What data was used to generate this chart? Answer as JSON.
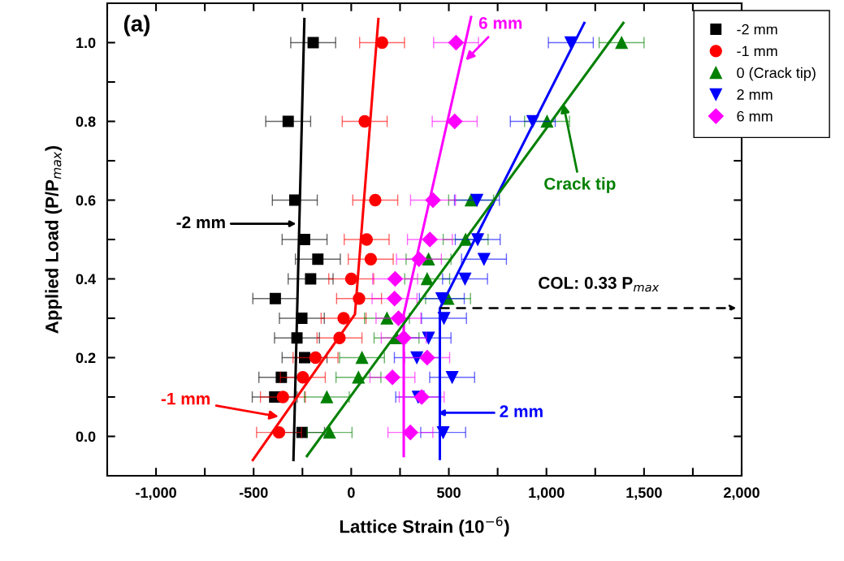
{
  "chart_data": {
    "type": "scatter",
    "xlabel": "Lattice Strain (10$^{−6}$)",
    "ylabel": "Applied Load (P/P$_{max}$)",
    "xlim": [
      -1250,
      2000
    ],
    "ylim": [
      -0.1,
      1.1
    ],
    "xticks": [
      {
        "value": -1250,
        "label": null
      },
      {
        "value": -1000,
        "label": "-1,000"
      },
      {
        "value": -750,
        "label": null
      },
      {
        "value": -500,
        "label": "-500"
      },
      {
        "value": -250,
        "label": null
      },
      0,
      {
        "value": 250,
        "label": null
      },
      500,
      {
        "value": 750,
        "label": null
      },
      {
        "value": 1000,
        "label": "1,000"
      },
      {
        "value": 1250,
        "label": null
      },
      {
        "value": 1500,
        "label": "1,500"
      },
      {
        "value": 1750,
        "label": null
      },
      {
        "value": 2000,
        "label": "2,000"
      }
    ],
    "yticks": [
      {
        "value": 0.0,
        "label": "0.0"
      },
      {
        "value": 0.1,
        "label": null
      },
      {
        "value": 0.2,
        "label": "0.2"
      },
      {
        "value": 0.3,
        "label": null
      },
      {
        "value": 0.4,
        "label": "0.4"
      },
      {
        "value": 0.5,
        "label": null
      },
      {
        "value": 0.6,
        "label": "0.6"
      },
      {
        "value": 0.7,
        "label": null
      },
      {
        "value": 0.8,
        "label": "0.8"
      },
      {
        "value": 0.9,
        "label": null
      },
      {
        "value": 1.0,
        "label": "1.0"
      }
    ],
    "grid": false,
    "legend": "top right",
    "series": [
      {
        "name": "-2 mm",
        "marker": "square",
        "color": "#000000",
        "x": [
          -195,
          -323,
          -289,
          -239,
          -171,
          -208,
          -389,
          -253,
          -278,
          -239,
          -358,
          -392,
          -252
        ],
        "values": [
          1.0,
          0.8,
          0.6,
          0.5,
          0.45,
          0.4,
          0.35,
          0.3,
          0.25,
          0.2,
          0.15,
          0.1,
          0.01
        ],
        "xerrors": [
          115,
          115,
          115,
          115,
          115,
          115,
          115,
          115,
          115,
          115,
          115,
          115,
          115
        ]
      },
      {
        "name": "-1 mm",
        "marker": "circle",
        "color": "#ff0000",
        "x": [
          158,
          69,
          123,
          79,
          100,
          0,
          40,
          -39,
          -60,
          -183,
          -248,
          -350,
          -370
        ],
        "values": [
          1.0,
          0.8,
          0.6,
          0.5,
          0.45,
          0.4,
          0.35,
          0.3,
          0.25,
          0.2,
          0.15,
          0.1,
          0.01
        ],
        "xerrors": [
          115,
          115,
          115,
          115,
          115,
          115,
          115,
          115,
          115,
          115,
          115,
          115,
          115
        ]
      },
      {
        "name": "0 (Crack tip)",
        "marker": "triangle",
        "color": "#008000",
        "x": [
          1385,
          1003,
          614,
          586,
          396,
          389,
          496,
          183,
          232,
          55,
          37,
          -125,
          -111
        ],
        "values": [
          1.0,
          0.8,
          0.6,
          0.5,
          0.45,
          0.4,
          0.35,
          0.3,
          0.25,
          0.2,
          0.15,
          0.1,
          0.01
        ],
        "xerrors": [
          115,
          115,
          115,
          115,
          115,
          115,
          115,
          115,
          115,
          115,
          115,
          115,
          115
        ]
      },
      {
        "name": "2 mm",
        "marker": "triangle_down",
        "color": "#0000ff",
        "x": [
          1125,
          930,
          644,
          648,
          680,
          583,
          464,
          475,
          396,
          336,
          517,
          343,
          471
        ],
        "values": [
          1.0,
          0.8,
          0.6,
          0.5,
          0.45,
          0.4,
          0.35,
          0.3,
          0.25,
          0.2,
          0.15,
          0.1,
          0.01
        ],
        "xerrors": [
          115,
          115,
          115,
          115,
          115,
          115,
          115,
          115,
          115,
          115,
          115,
          115,
          115
        ]
      },
      {
        "name": "6 mm",
        "marker": "diamond",
        "color": "#ff00ff",
        "x": [
          537,
          530,
          419,
          403,
          347,
          225,
          222,
          242,
          269,
          389,
          211,
          361,
          303
        ],
        "values": [
          1.0,
          0.8,
          0.6,
          0.5,
          0.45,
          0.4,
          0.35,
          0.3,
          0.25,
          0.2,
          0.15,
          0.1,
          0.01
        ],
        "xerrors": [
          115,
          115,
          115,
          115,
          115,
          115,
          115,
          115,
          115,
          115,
          115,
          115,
          115
        ]
      },
      {
        "type": "line",
        "color": "#000000",
        "x": [
          -296,
          -240
        ],
        "values": [
          -0.06,
          1.06
        ]
      },
      {
        "type": "line",
        "color": "#ff0000",
        "x": [
          -504,
          19,
          139
        ],
        "values": [
          -0.06,
          0.31,
          1.06
        ]
      },
      {
        "type": "line",
        "color": "#ff00ff",
        "x": [
          269,
          269,
          614
        ],
        "values": [
          -0.05,
          0.31,
          1.065
        ]
      },
      {
        "type": "line",
        "color": "#0000ff",
        "x": [
          454,
          454,
          1194
        ],
        "values": [
          -0.057,
          0.325,
          1.05
        ]
      },
      {
        "type": "line",
        "color": "#008000",
        "x": [
          -227,
          1394
        ],
        "values": [
          -0.05,
          1.05
        ]
      }
    ],
    "annotations": [
      "(a)",
      "-2 mm",
      {
        "text": "-1 mm",
        "x": -372,
        "y": 0.05
      },
      {
        "text": "6 mm",
        "x": 586,
        "y": 0.955
      },
      {
        "text": "Crack tip",
        "x": 1086,
        "y": 0.845
      },
      "2 mm",
      "COL: 0.33 P$_{max}$"
    ]
  }
}
